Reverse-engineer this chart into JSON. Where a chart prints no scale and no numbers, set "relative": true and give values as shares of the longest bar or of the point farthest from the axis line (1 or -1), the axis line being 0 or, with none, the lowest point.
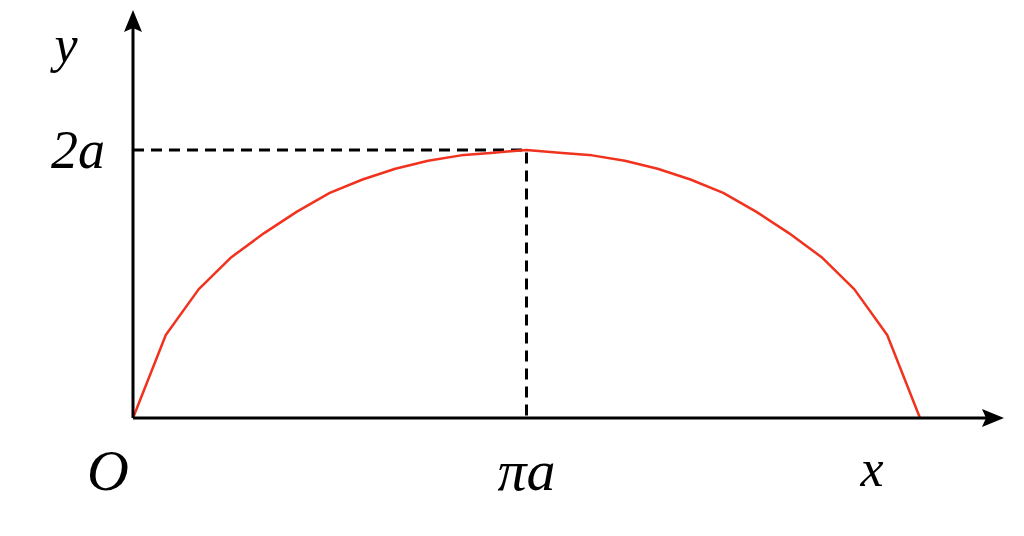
{
  "chart_data": {
    "type": "line",
    "xlabel": "x",
    "ylabel": "y",
    "relative": true,
    "categories": [
      null,
      null,
      null,
      null,
      null,
      null,
      null,
      null,
      null,
      null,
      null,
      null,
      null,
      null,
      null,
      null,
      null,
      null,
      null,
      null,
      null,
      null,
      null,
      null,
      null
    ],
    "series": [
      {
        "color": "#f0321e",
        "values": [
          0,
          0.31,
          0.48,
          0.6,
          0.69,
          0.77,
          0.84,
          0.89,
          0.93,
          0.96,
          0.98,
          0.99,
          1,
          0.99,
          0.98,
          0.96,
          0.93,
          0.89,
          0.84,
          0.77,
          0.69,
          0.6,
          0.48,
          0.31,
          0
        ]
      }
    ],
    "annotations": [
      "O",
      "πa",
      "2a"
    ],
    "marker": "none",
    "line_style": "solid"
  }
}
